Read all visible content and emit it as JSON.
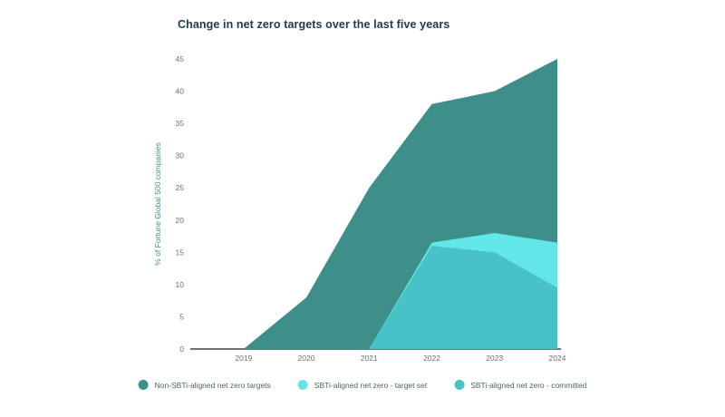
{
  "chart_data": {
    "type": "area",
    "title": "Change in net zero targets over the last five years",
    "xlabel": "",
    "ylabel": "% of Fortune Global 500 companies",
    "xlim": [
      2018.15,
      2024
    ],
    "ylim": [
      0,
      45
    ],
    "x_ticks": [
      2019,
      2020,
      2021,
      2022,
      2023,
      2024
    ],
    "y_ticks": [
      0,
      5,
      10,
      15,
      20,
      25,
      30,
      35,
      40,
      45
    ],
    "grid": false,
    "legend_position": "bottom",
    "background": "#ffffff",
    "axis_line_color": "#444444",
    "tick_label_color": "#6e6e6e",
    "title_color": "#1E3A4C",
    "ylabel_color": "#3E8E89",
    "series": [
      {
        "name": "Non-SBTi-aligned net zero targets",
        "color": "#3E8E89",
        "x": [
          2018.15,
          2019,
          2020,
          2021,
          2022,
          2023,
          2024
        ],
        "values": [
          0,
          0,
          8,
          25,
          38,
          40,
          45
        ]
      },
      {
        "name": "SBTi-aligned net zero - target set",
        "color": "#63E6E8",
        "x": [
          2021,
          2022,
          2023,
          2024
        ],
        "values": [
          0,
          16.5,
          18,
          16.5
        ]
      },
      {
        "name": "SBTi-aligned net zero - committed",
        "color": "#48C2C6",
        "x": [
          2021,
          2022,
          2023,
          2024
        ],
        "values": [
          0,
          16,
          15,
          9.5
        ]
      }
    ]
  }
}
